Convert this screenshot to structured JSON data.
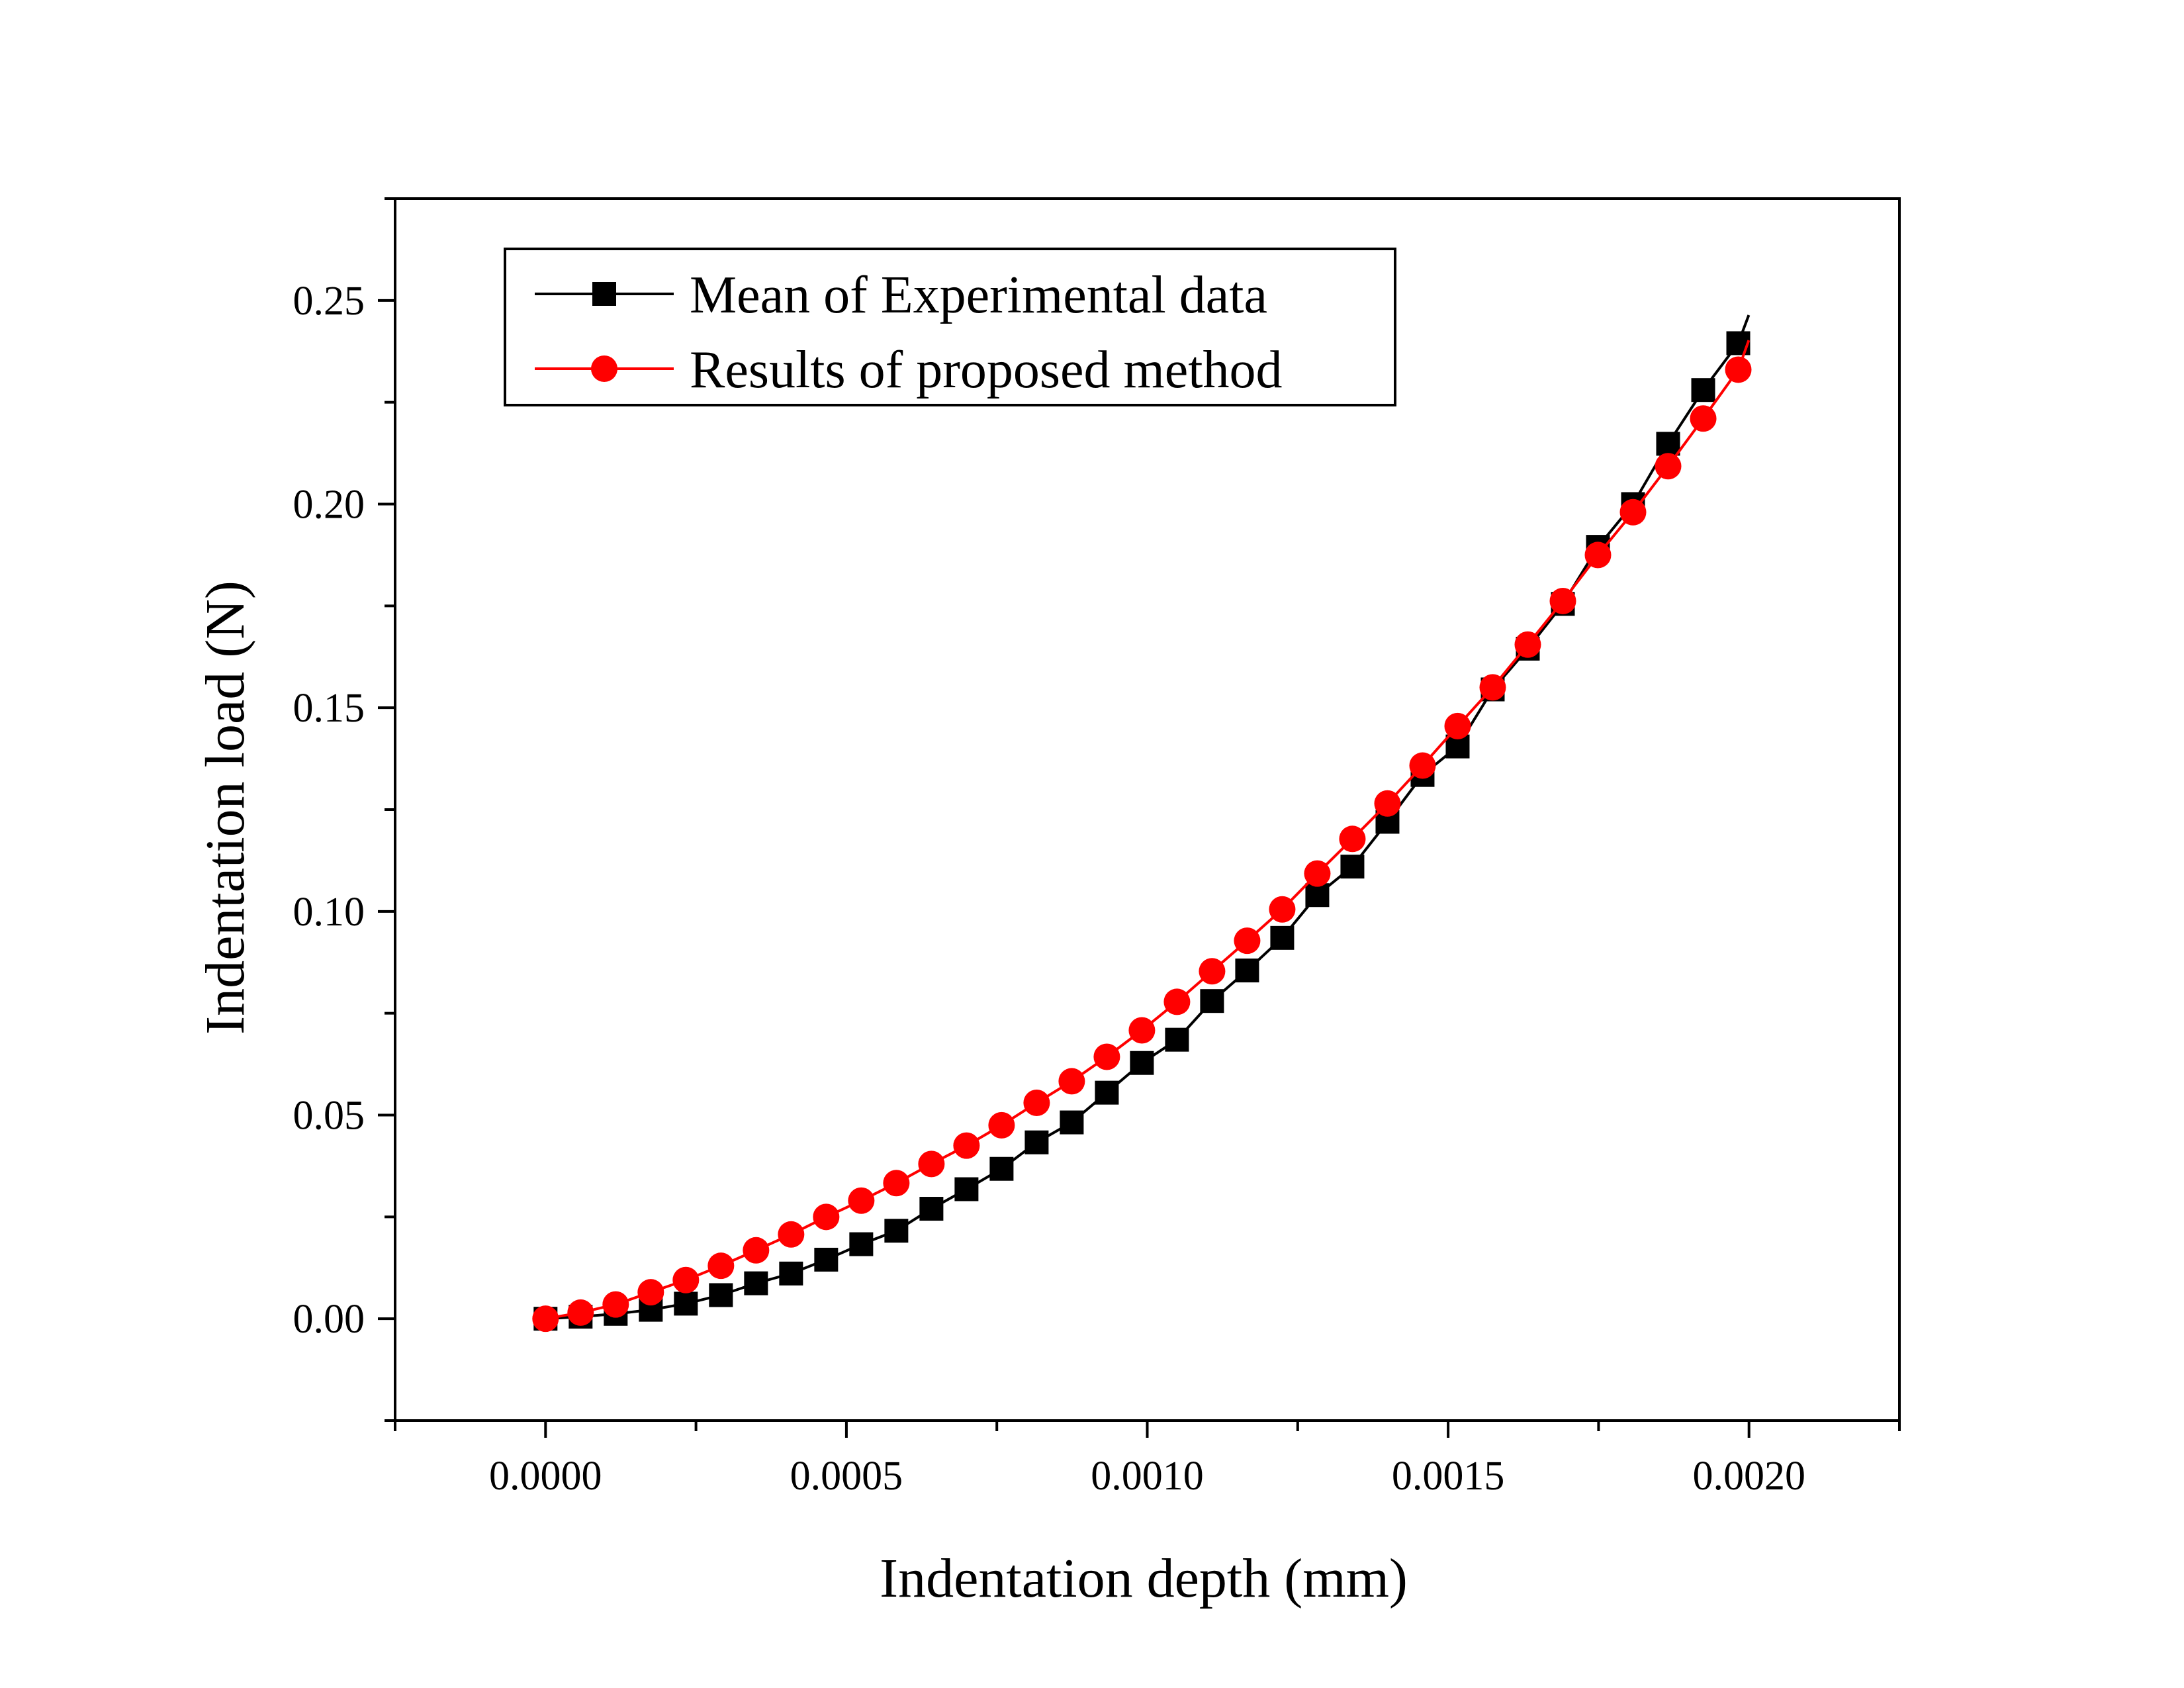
{
  "chart_data": {
    "type": "line",
    "title": "",
    "xlabel": "Indentation depth (mm)",
    "ylabel": "Indentation load (N)",
    "xlim": [
      -0.00025,
      0.00225
    ],
    "ylim": [
      -0.025,
      0.275
    ],
    "x_ticks": [
      {
        "value": 0.0,
        "label": "0.0000"
      },
      {
        "value": 0.0005,
        "label": "0.0005"
      },
      {
        "value": 0.001,
        "label": "0.0010"
      },
      {
        "value": 0.0015,
        "label": "0.0015"
      },
      {
        "value": 0.002,
        "label": "0.0020"
      }
    ],
    "y_ticks": [
      {
        "value": 0.0,
        "label": "0.00"
      },
      {
        "value": 0.05,
        "label": "0.05"
      },
      {
        "value": 0.1,
        "label": "0.10"
      },
      {
        "value": 0.15,
        "label": "0.15"
      },
      {
        "value": 0.2,
        "label": "0.20"
      },
      {
        "value": 0.25,
        "label": "0.25"
      }
    ],
    "grid": false,
    "legend_position": "top-left",
    "series": [
      {
        "name": "Mean of Experimental data",
        "color": "#000000",
        "marker": "square",
        "x": [
          0.0,
          5.83e-05,
          0.0001166,
          0.0001749,
          0.0002332,
          0.0002915,
          0.0003498,
          0.0004081,
          0.0004664,
          0.0005247,
          0.000583,
          0.0006413,
          0.0006996,
          0.0007579,
          0.0008162,
          0.0008745,
          0.0009328,
          0.0009911,
          0.0010494,
          0.0011077,
          0.001166,
          0.0012243,
          0.0012826,
          0.0013409,
          0.0013992,
          0.0014575,
          0.0015158,
          0.0015741,
          0.0016324,
          0.0016907,
          0.001749,
          0.0018073,
          0.0018656,
          0.0019239,
          0.0019822
        ],
        "y": [
          0.0,
          0.0005,
          0.0012,
          0.0022,
          0.0037,
          0.0058,
          0.0087,
          0.0111,
          0.0145,
          0.0183,
          0.0216,
          0.027,
          0.0318,
          0.0368,
          0.0433,
          0.0482,
          0.0555,
          0.0628,
          0.0685,
          0.078,
          0.0855,
          0.0935,
          0.104,
          0.111,
          0.122,
          0.1335,
          0.1405,
          0.1545,
          0.1645,
          0.1755,
          0.1895,
          0.2,
          0.2148,
          0.228,
          0.2395
        ]
      },
      {
        "name": "Results of proposed method",
        "color": "#ff0000",
        "marker": "circle",
        "x": [
          0.0,
          5.83e-05,
          0.0001166,
          0.0001749,
          0.0002332,
          0.0002915,
          0.0003498,
          0.0004081,
          0.0004664,
          0.0005247,
          0.000583,
          0.0006413,
          0.0006996,
          0.0007579,
          0.0008162,
          0.0008745,
          0.0009328,
          0.0009911,
          0.0010494,
          0.0011077,
          0.001166,
          0.0012243,
          0.0012826,
          0.0013409,
          0.0013992,
          0.0014575,
          0.0015158,
          0.0015741,
          0.0016324,
          0.0016907,
          0.001749,
          0.0018073,
          0.0018656,
          0.0019239,
          0.0019822
        ],
        "y": [
          0.0,
          0.0015,
          0.0035,
          0.0065,
          0.0095,
          0.013,
          0.0168,
          0.0207,
          0.025,
          0.029,
          0.0333,
          0.038,
          0.0425,
          0.0475,
          0.053,
          0.0583,
          0.0643,
          0.0708,
          0.0778,
          0.0853,
          0.0928,
          0.1005,
          0.1093,
          0.1178,
          0.1265,
          0.1358,
          0.1455,
          0.155,
          0.1655,
          0.1762,
          0.1875,
          0.198,
          0.2093,
          0.221,
          0.233
        ]
      }
    ]
  }
}
